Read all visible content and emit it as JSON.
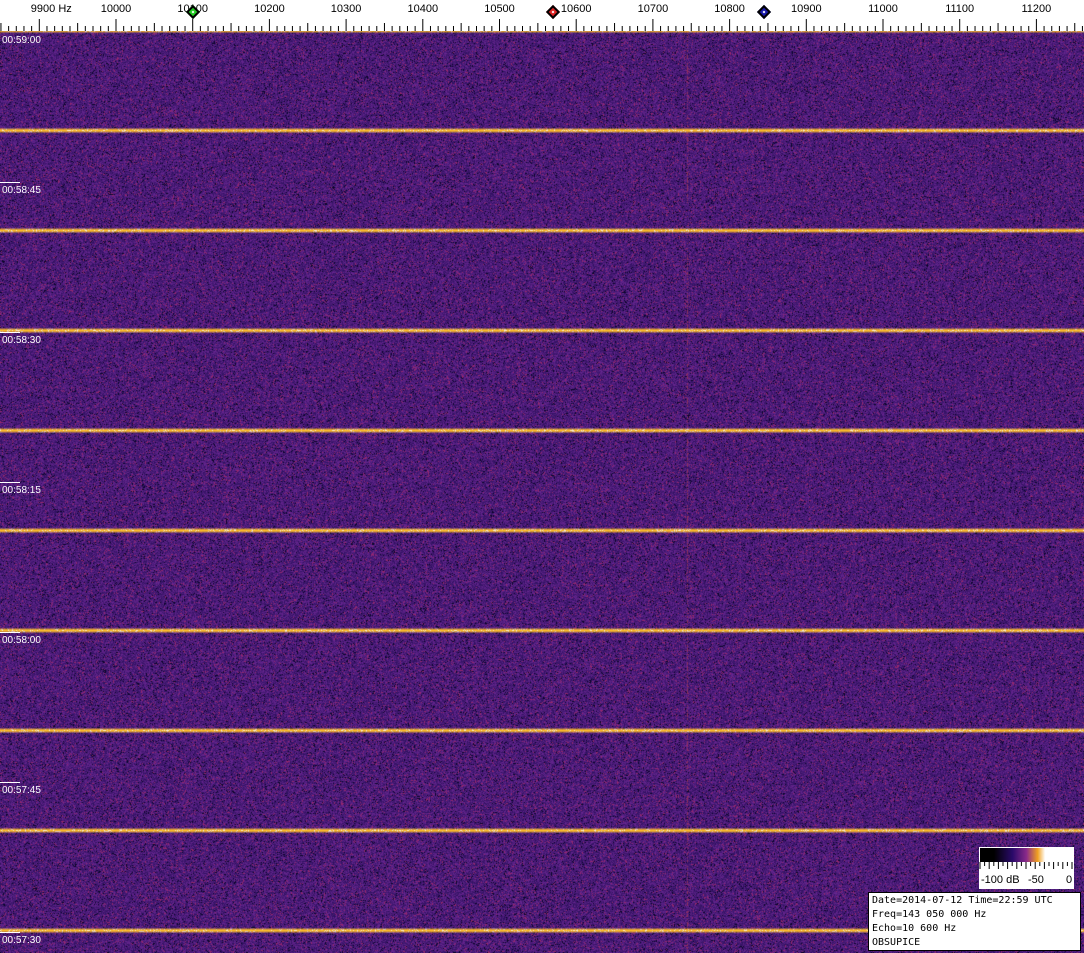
{
  "frequency_axis": {
    "unit": "Hz",
    "labels": [
      "9900",
      "10000",
      "10100",
      "10200",
      "10300",
      "10400",
      "10500",
      "10600",
      "10700",
      "10800",
      "10900",
      "11000",
      "11100",
      "11200"
    ],
    "values": [
      9900,
      10000,
      10100,
      10200,
      10300,
      10400,
      10500,
      10600,
      10700,
      10800,
      10900,
      11000,
      11100,
      11200
    ]
  },
  "markers": [
    {
      "name": "green-marker",
      "frequency_hz": 10100,
      "color": "#22cc22"
    },
    {
      "name": "red-marker",
      "frequency_hz": 10570,
      "color": "#dd2222"
    },
    {
      "name": "blue-marker",
      "frequency_hz": 10845,
      "color": "#1a1aaa"
    }
  ],
  "time_labels": [
    "00:59:00",
    "00:58:45",
    "00:58:30",
    "00:58:15",
    "00:58:00",
    "00:57:45",
    "00:57:30"
  ],
  "color_scale": {
    "labels": [
      "-100 dB",
      "-50",
      "0"
    ]
  },
  "info": {
    "line1": "Date=2014-07-12 Time=22:59 UTC",
    "line2": "Freq=143 050 000 Hz",
    "line3": "Echo=10 600 Hz",
    "line4": "OBSUPICE"
  },
  "colors": {
    "background": "#2a1670",
    "signal": "#ffd040"
  }
}
